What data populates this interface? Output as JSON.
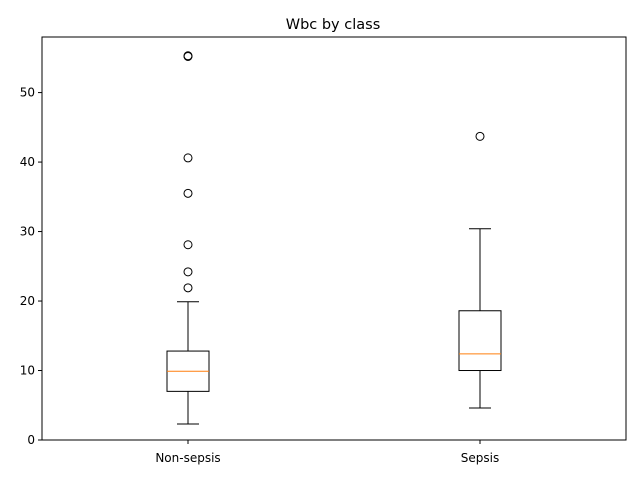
{
  "chart_data": {
    "type": "box",
    "title": "Wbc by class",
    "xlabel": "",
    "ylabel": "",
    "ylim": [
      0,
      58
    ],
    "yticks": [
      0,
      10,
      20,
      30,
      40,
      50
    ],
    "grid": false,
    "categories": [
      "Non-sepsis",
      "Sepsis"
    ],
    "boxes": [
      {
        "label": "Non-sepsis",
        "whisker_low": 2.3,
        "q1": 7.0,
        "median": 9.9,
        "q3": 12.8,
        "whisker_high": 19.9,
        "outliers": [
          21.9,
          24.2,
          28.1,
          35.5,
          40.6,
          55.2,
          55.3
        ]
      },
      {
        "label": "Sepsis",
        "whisker_low": 4.6,
        "q1": 10.0,
        "median": 12.4,
        "q3": 18.6,
        "whisker_high": 30.4,
        "outliers": [
          43.7
        ]
      }
    ],
    "colors": {
      "box": "#000000",
      "median": "#ff7f0e",
      "outlier": "#000000"
    }
  }
}
